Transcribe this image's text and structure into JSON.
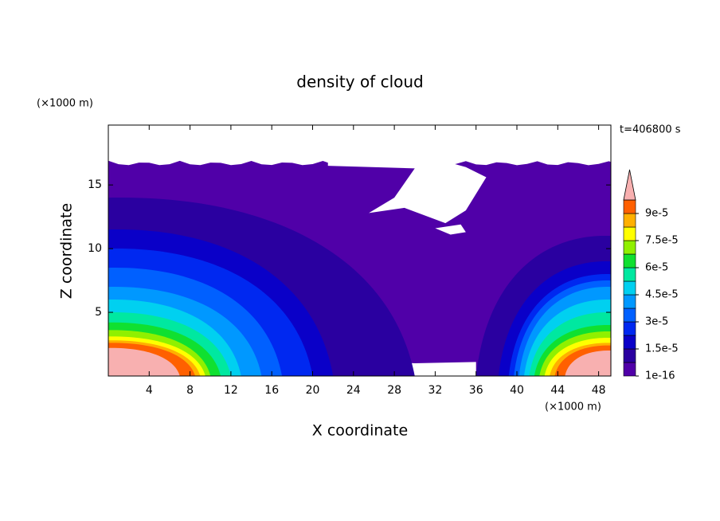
{
  "chart_data": {
    "type": "contour",
    "title": "density of cloud",
    "time_label": "t=406800 s",
    "x_label": "X coordinate",
    "y_label": "Z coordinate",
    "x_unit": "(×1000 m)",
    "y_unit": "(×1000 m)",
    "xlim": [
      0,
      49.2
    ],
    "xticks": [
      4,
      8,
      12,
      16,
      20,
      24,
      28,
      32,
      36,
      40,
      44,
      48
    ],
    "ylim": [
      0,
      19.7
    ],
    "yticks": [
      5,
      10,
      15
    ],
    "levels": [
      1e-16,
      7.5e-06,
      1.5e-05,
      2.25e-05,
      3e-05,
      3.75e-05,
      4.5e-05,
      5.25e-05,
      6e-05,
      6.75e-05,
      7.5e-05,
      8.25e-05,
      9e-05
    ],
    "colors": [
      "#5000a8",
      "#2a00a0",
      "#0a00c8",
      "#0028f0",
      "#0060ff",
      "#0098ff",
      "#00d0f0",
      "#00e8a0",
      "#10e030",
      "#90f000",
      "#ffff00",
      "#ffb000",
      "#ff6000"
    ],
    "extend_color": "#f8b0b0",
    "colorbar_ticks": [
      {
        "value": 1e-16,
        "label": "1e-16"
      },
      {
        "value": 1.5e-05,
        "label": "1.5e-5"
      },
      {
        "value": 3e-05,
        "label": "3e-5"
      },
      {
        "value": 4.5e-05,
        "label": "4.5e-5"
      },
      {
        "value": 6e-05,
        "label": "6e-5"
      },
      {
        "value": 7.5e-05,
        "label": "7.5e-5"
      },
      {
        "value": 9e-05,
        "label": "9e-5"
      }
    ]
  }
}
